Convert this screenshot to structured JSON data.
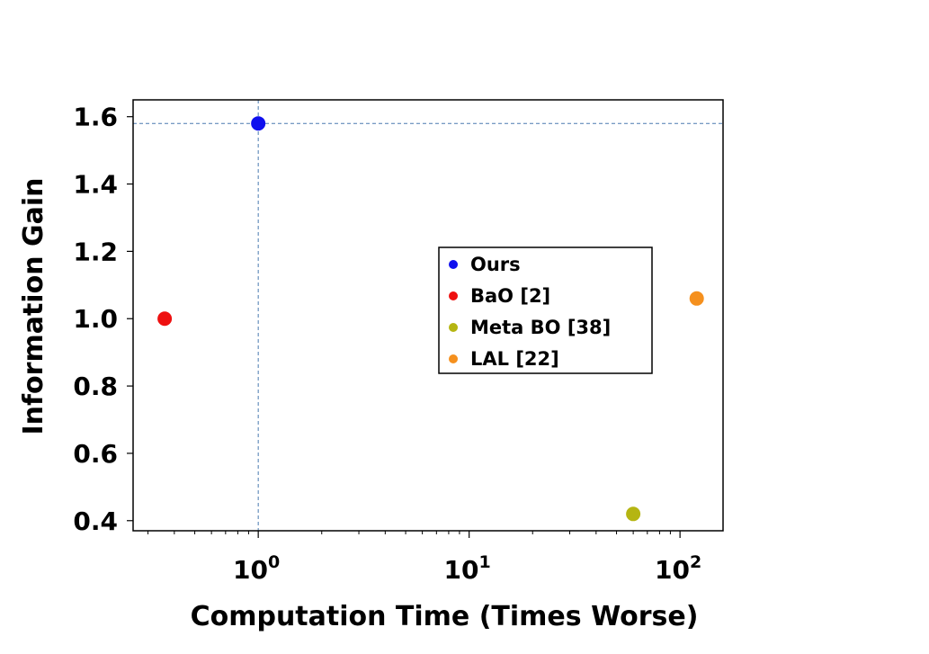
{
  "chart_data": {
    "type": "scatter",
    "xlabel": "Computation Time (Times Worse)",
    "ylabel": "Information Gain",
    "xscale": "log",
    "xlim": [
      0.255,
      160
    ],
    "ylim": [
      0.37,
      1.65
    ],
    "x_ticks": [
      {
        "value": 1,
        "base": "10",
        "exp": "0"
      },
      {
        "value": 10,
        "base": "10",
        "exp": "1"
      },
      {
        "value": 100,
        "base": "10",
        "exp": "2"
      }
    ],
    "y_ticks": [
      {
        "value": 0.4,
        "label": "0.4"
      },
      {
        "value": 0.6,
        "label": "0.6"
      },
      {
        "value": 0.8,
        "label": "0.8"
      },
      {
        "value": 1.0,
        "label": "1.0"
      },
      {
        "value": 1.2,
        "label": "1.2"
      },
      {
        "value": 1.4,
        "label": "1.4"
      },
      {
        "value": 1.6,
        "label": "1.6"
      }
    ],
    "reference_lines": {
      "x": 1,
      "y": 1.58,
      "color": "#4a7ab0",
      "style": "dashed"
    },
    "legend_position": "center-right",
    "grid": false,
    "series": [
      {
        "name": "Ours",
        "color": "#1010ee",
        "x": [
          1.0
        ],
        "y": [
          1.58
        ]
      },
      {
        "name": "BaO [2]",
        "color": "#ee1010",
        "x": [
          0.36
        ],
        "y": [
          1.0
        ]
      },
      {
        "name": "Meta BO [38]",
        "color": "#b5b512",
        "x": [
          60
        ],
        "y": [
          0.42
        ]
      },
      {
        "name": "LAL [22]",
        "color": "#f5901e",
        "x": [
          120
        ],
        "y": [
          1.06
        ]
      }
    ]
  }
}
